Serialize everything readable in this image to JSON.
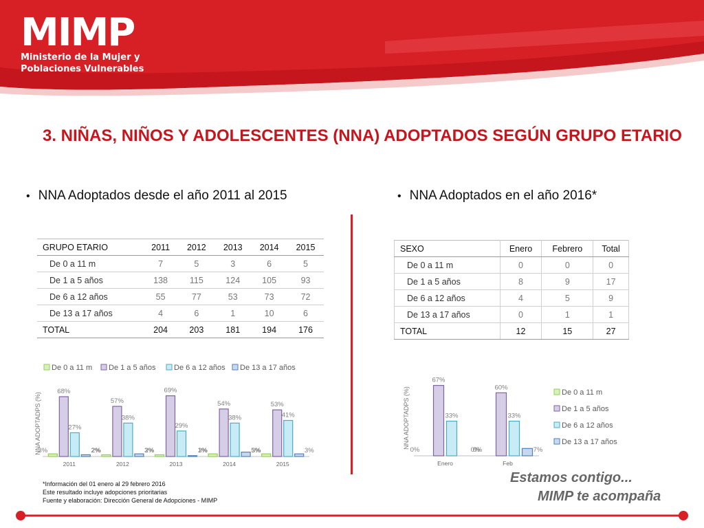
{
  "logo": {
    "name": "MIMP",
    "line1": "Ministerio de la Mujer y",
    "line2": "Poblaciones Vulnerables"
  },
  "title": "3. NIÑAS, NIÑOS Y ADOLESCENTES (NNA) ADOPTADOS SEGÚN GRUPO ETARIO",
  "left_bullet": "NNA Adoptados desde el año 2011 al 2015",
  "right_bullet": "NNA Adoptados en el año 2016*",
  "table1": {
    "headers": [
      "GRUPO ETARIO",
      "2011",
      "2012",
      "2013",
      "2014",
      "2015"
    ],
    "rows": [
      [
        "De 0 a 11 m",
        "7",
        "5",
        "3",
        "6",
        "5"
      ],
      [
        "De 1 a 5 años",
        "138",
        "115",
        "124",
        "105",
        "93"
      ],
      [
        "De 6 a 12 años",
        "55",
        "77",
        "53",
        "73",
        "72"
      ],
      [
        "De 13 a 17 años",
        "4",
        "6",
        "1",
        "10",
        "6"
      ]
    ],
    "total": [
      "TOTAL",
      "204",
      "203",
      "181",
      "194",
      "176"
    ]
  },
  "table2": {
    "headers": [
      "SEXO",
      "Enero",
      "Febrero",
      "Total"
    ],
    "rows": [
      [
        "De 0 a 11 m",
        "0",
        "0",
        "0"
      ],
      [
        "De 1 a 5 años",
        "8",
        "9",
        "17"
      ],
      [
        "De 6 a 12 años",
        "4",
        "5",
        "9"
      ],
      [
        "De 13 a 17 años",
        "0",
        "1",
        "1"
      ]
    ],
    "total": [
      "TOTAL",
      "12",
      "15",
      "27"
    ]
  },
  "colors": {
    "brand_red": "#d71f26",
    "series": [
      "#92d050",
      "#8064a2",
      "#4bacc6",
      "#4f81bd"
    ],
    "series_fill": [
      "#d8f0c0",
      "#d6cde6",
      "#c8ecf5",
      "#c8d9ef"
    ]
  },
  "chart_data": [
    {
      "type": "bar",
      "ylabel": "NNA ADOPTADPS (%)",
      "legend_position": "top",
      "categories": [
        "2011",
        "2012",
        "2013",
        "2014",
        "2015"
      ],
      "ylim": [
        0,
        75
      ],
      "series": [
        {
          "name": "De 0 a 11 m",
          "values": [
            3,
            2,
            2,
            3,
            3
          ],
          "labels": [
            "3%",
            "2%",
            "2%",
            "3%",
            "3%"
          ]
        },
        {
          "name": "De 1 a 5 años",
          "values": [
            68,
            57,
            69,
            54,
            53
          ],
          "labels": [
            "68%",
            "57%",
            "69%",
            "54%",
            "53%"
          ]
        },
        {
          "name": "De 6 a 12 años",
          "values": [
            27,
            38,
            29,
            38,
            41
          ],
          "labels": [
            "27%",
            "38%",
            "29%",
            "38%",
            "41%"
          ]
        },
        {
          "name": "De 13 a 17 años",
          "values": [
            2,
            3,
            1,
            5,
            3
          ],
          "labels": [
            "2%",
            "3%",
            "1%",
            "5%",
            "3%"
          ]
        }
      ]
    },
    {
      "type": "bar",
      "ylabel": "NNA ADOPTADPS (%)",
      "legend_position": "right",
      "categories": [
        "Enero",
        "Feb"
      ],
      "ylim": [
        0,
        72
      ],
      "series": [
        {
          "name": "De 0 a 11 m",
          "values": [
            0,
            0
          ],
          "labels": [
            "0%",
            "0%"
          ]
        },
        {
          "name": "De 1 a 5 años",
          "values": [
            67,
            60
          ],
          "labels": [
            "67%",
            "60%"
          ]
        },
        {
          "name": "De 6 a 12 años",
          "values": [
            33,
            33
          ],
          "labels": [
            "33%",
            "33%"
          ]
        },
        {
          "name": "De 13 a 17 años",
          "values": [
            0,
            7
          ],
          "labels": [
            "0%",
            "7%"
          ]
        }
      ]
    }
  ],
  "footnotes": [
    "*Información del 01 enero al 29 febrero 2016",
    "Este resultado incluye adopciones prioritarias",
    "Fuente y elaboración: Dirección General de Adopciones - MIMP"
  ],
  "slogan": {
    "line1": "Estamos contigo...",
    "line2": "MIMP te acompaña"
  }
}
